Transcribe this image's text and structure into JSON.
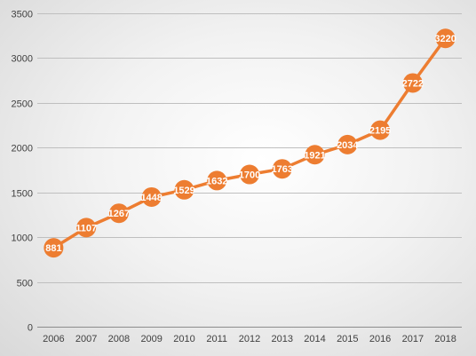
{
  "chart_data": {
    "type": "line",
    "title": "",
    "xlabel": "",
    "ylabel": "",
    "categories": [
      "2006",
      "2007",
      "2008",
      "2009",
      "2010",
      "2011",
      "2012",
      "2013",
      "2014",
      "2015",
      "2016",
      "2017",
      "2018"
    ],
    "series": [
      {
        "values": [
          881,
          1107,
          1267,
          1448,
          1529,
          1632,
          1700,
          1763,
          1921,
          2034,
          2195,
          2722,
          3220
        ]
      }
    ],
    "ylim": [
      0,
      3500
    ],
    "yticks": [
      0,
      500,
      1000,
      1500,
      2000,
      2500,
      3000,
      3500
    ],
    "grid": true,
    "legend": "none",
    "data_labels": true,
    "colors": {
      "line": "#ED7D31",
      "marker": "#ED7D31",
      "grid": "#bfbfbf",
      "label": "#ffffff"
    }
  }
}
